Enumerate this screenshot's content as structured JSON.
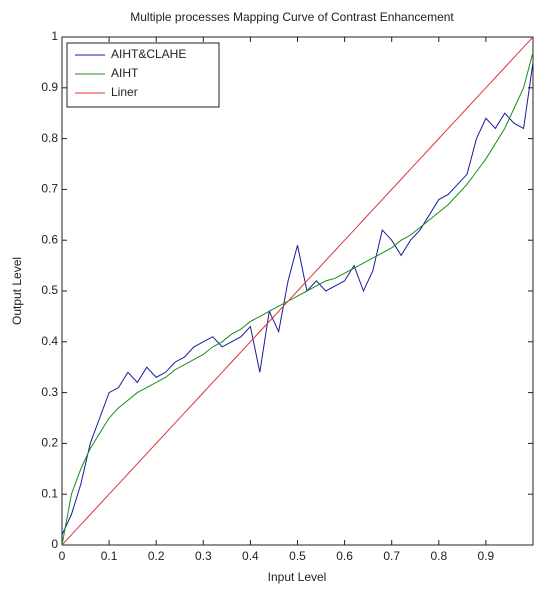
{
  "chart_data": {
    "type": "line",
    "title": "Multiple processes Mapping Curve of Contrast Enhancement",
    "x_label": "Input Level",
    "y_label": "Output Level",
    "x": [
      0,
      0.02,
      0.04,
      0.06,
      0.08,
      0.1,
      0.12,
      0.14,
      0.16,
      0.18,
      0.2,
      0.22,
      0.24,
      0.26,
      0.28,
      0.3,
      0.32,
      0.34,
      0.36,
      0.38,
      0.4,
      0.42,
      0.44,
      0.46,
      0.48,
      0.5,
      0.52,
      0.54,
      0.56,
      0.58,
      0.6,
      0.62,
      0.64,
      0.66,
      0.68,
      0.7,
      0.72,
      0.74,
      0.76,
      0.78,
      0.8,
      0.82,
      0.84,
      0.86,
      0.88,
      0.9,
      0.92,
      0.94,
      0.96,
      0.98,
      1
    ],
    "series": [
      {
        "name": "AIHT&CLAHE",
        "color": "#1a1a9c",
        "values": [
          0.02,
          0.06,
          0.12,
          0.2,
          0.25,
          0.3,
          0.31,
          0.34,
          0.32,
          0.35,
          0.33,
          0.34,
          0.36,
          0.37,
          0.39,
          0.4,
          0.41,
          0.39,
          0.4,
          0.41,
          0.43,
          0.34,
          0.46,
          0.42,
          0.52,
          0.59,
          0.5,
          0.52,
          0.5,
          0.51,
          0.52,
          0.55,
          0.5,
          0.54,
          0.62,
          0.6,
          0.57,
          0.6,
          0.62,
          0.65,
          0.68,
          0.69,
          0.71,
          0.73,
          0.8,
          0.84,
          0.82,
          0.85,
          0.83,
          0.82,
          0.95
        ]
      },
      {
        "name": "AIHT",
        "color": "#1a8c1a",
        "values": [
          0,
          0.1,
          0.15,
          0.19,
          0.22,
          0.25,
          0.27,
          0.285,
          0.3,
          0.31,
          0.32,
          0.33,
          0.345,
          0.355,
          0.365,
          0.375,
          0.39,
          0.4,
          0.415,
          0.425,
          0.44,
          0.45,
          0.46,
          0.47,
          0.48,
          0.49,
          0.5,
          0.51,
          0.52,
          0.525,
          0.535,
          0.545,
          0.555,
          0.565,
          0.575,
          0.585,
          0.6,
          0.61,
          0.625,
          0.64,
          0.655,
          0.67,
          0.69,
          0.71,
          0.735,
          0.76,
          0.79,
          0.82,
          0.86,
          0.9,
          0.97
        ]
      },
      {
        "name": "Liner",
        "color": "#e03434",
        "values": [
          0,
          0.02,
          0.04,
          0.06,
          0.08,
          0.1,
          0.12,
          0.14,
          0.16,
          0.18,
          0.2,
          0.22,
          0.24,
          0.26,
          0.28,
          0.3,
          0.32,
          0.34,
          0.36,
          0.38,
          0.4,
          0.42,
          0.44,
          0.46,
          0.48,
          0.5,
          0.52,
          0.54,
          0.56,
          0.58,
          0.6,
          0.62,
          0.64,
          0.66,
          0.68,
          0.7,
          0.72,
          0.74,
          0.76,
          0.78,
          0.8,
          0.82,
          0.84,
          0.86,
          0.88,
          0.9,
          0.92,
          0.94,
          0.96,
          0.98,
          1
        ]
      }
    ],
    "xlim": [
      0,
      1
    ],
    "xticks": [
      0,
      0.1,
      0.2,
      0.3,
      0.4,
      0.5,
      0.6,
      0.7,
      0.8,
      0.9
    ],
    "ylim": [
      0,
      1
    ],
    "yticks": [
      0,
      0.1,
      0.2,
      0.3,
      0.4,
      0.5,
      0.6,
      0.7,
      0.8,
      0.9,
      1
    ],
    "legend": "upper left"
  }
}
